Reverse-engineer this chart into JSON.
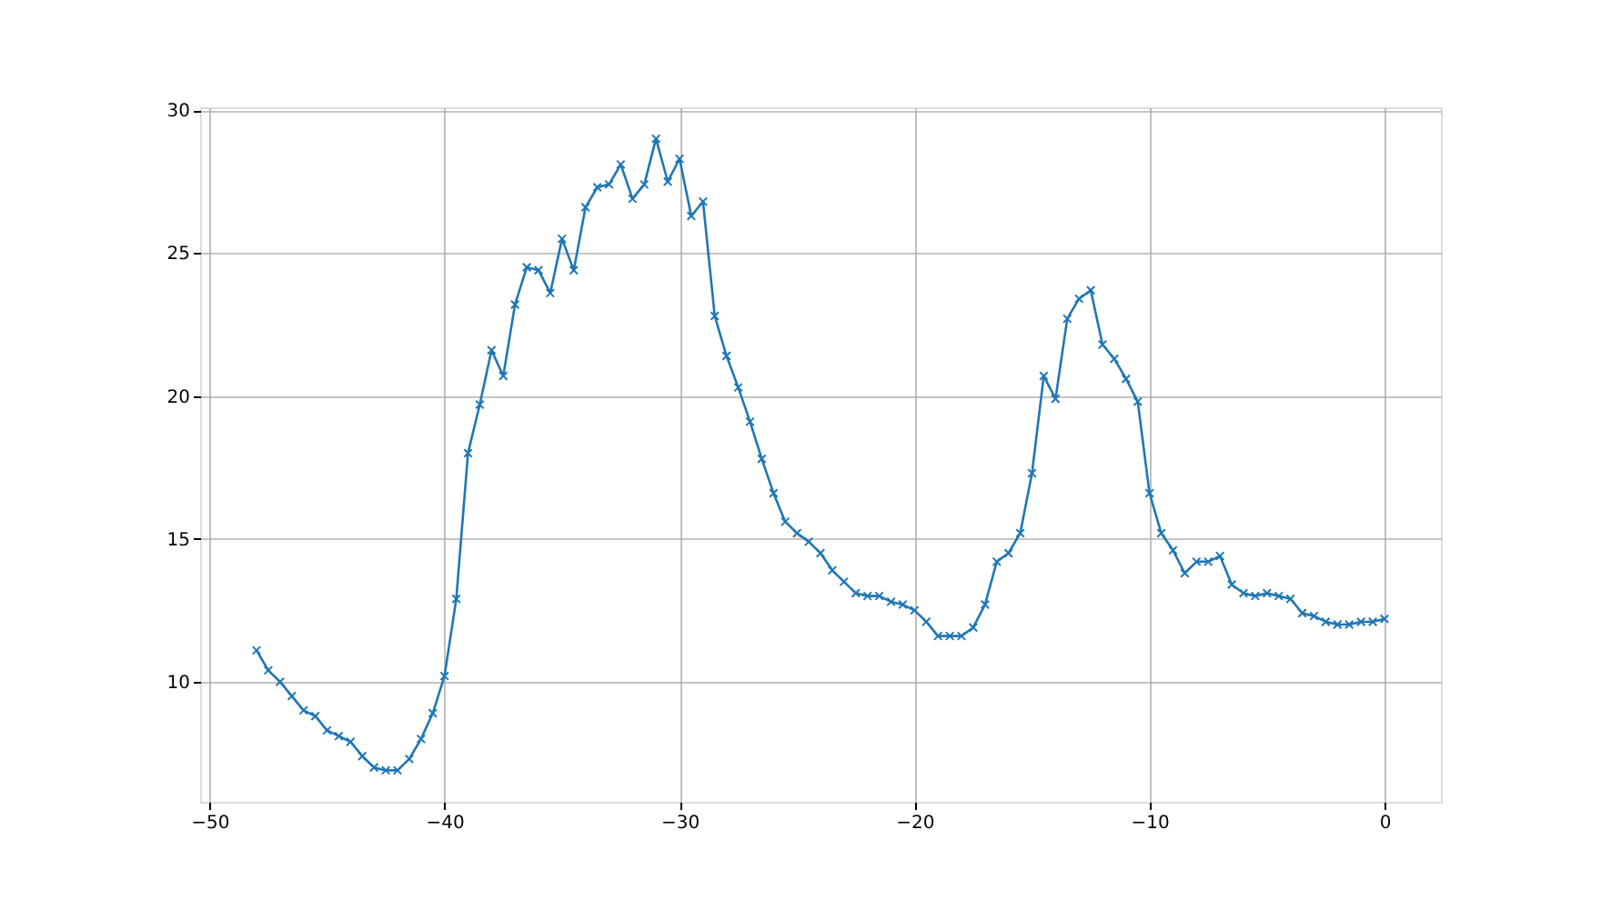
{
  "chart_data": {
    "type": "line",
    "x": [
      -48,
      -47.5,
      -47,
      -46.5,
      -46,
      -45.5,
      -45,
      -44.5,
      -44,
      -43.5,
      -43,
      -42.5,
      -42,
      -41.5,
      -41,
      -40.5,
      -40,
      -39.5,
      -39,
      -38.5,
      -38,
      -37.5,
      -37,
      -36.5,
      -36,
      -35.5,
      -35,
      -34.5,
      -34,
      -33.5,
      -33,
      -32.5,
      -32,
      -31.5,
      -31,
      -30.5,
      -30,
      -29.5,
      -29,
      -28.5,
      -28,
      -27.5,
      -27,
      -26.5,
      -26,
      -25.5,
      -25,
      -24.5,
      -24,
      -23.5,
      -23,
      -22.5,
      -22,
      -21.5,
      -21,
      -20.5,
      -20,
      -19.5,
      -19,
      -18.5,
      -18,
      -17.5,
      -17,
      -16.5,
      -16,
      -15.5,
      -15,
      -14.5,
      -14,
      -13.5,
      -13,
      -12.5,
      -12,
      -11.5,
      -11,
      -10.5,
      -10,
      -9.5,
      -9,
      -8.5,
      -8,
      -7.5,
      -7,
      -6.5,
      -6,
      -5.5,
      -5,
      -4.5,
      -4,
      -3.5,
      -3,
      -2.5,
      -2,
      -1.5,
      -1,
      -0.5,
      0
    ],
    "series": [
      {
        "color": "#1f77b4",
        "values": [
          11.1,
          10.4,
          10.0,
          9.5,
          9.0,
          8.8,
          8.3,
          8.1,
          7.9,
          7.4,
          7.0,
          6.9,
          6.9,
          7.3,
          8.0,
          8.9,
          10.2,
          12.9,
          18.0,
          19.7,
          21.6,
          20.7,
          23.2,
          24.5,
          24.4,
          23.6,
          25.5,
          24.4,
          26.6,
          27.3,
          27.4,
          28.1,
          26.9,
          27.4,
          29.0,
          27.5,
          28.3,
          26.3,
          26.8,
          22.8,
          21.4,
          20.3,
          19.1,
          17.8,
          16.6,
          15.6,
          15.2,
          14.9,
          14.5,
          13.9,
          13.5,
          13.1,
          13.0,
          13.0,
          12.8,
          12.7,
          12.5,
          12.1,
          11.6,
          11.6,
          11.6,
          11.9,
          12.7,
          14.2,
          14.5,
          15.2,
          17.3,
          20.7,
          19.9,
          22.7,
          23.4,
          23.7,
          21.8,
          21.3,
          20.6,
          19.8,
          16.6,
          15.2,
          14.6,
          13.8,
          14.2,
          14.2,
          14.4,
          13.4,
          13.1,
          13.0,
          13.1,
          13.0,
          12.9,
          12.4,
          12.3,
          12.1,
          12.0,
          12.0,
          12.1,
          12.1,
          12.2
        ]
      }
    ],
    "xlim": [
      -50.4,
      2.4
    ],
    "xticks": [
      -50,
      -40,
      -30,
      -20,
      -10,
      0
    ],
    "ylim": [
      5.8,
      30.1
    ],
    "yticks": [
      10,
      15,
      20,
      25,
      30
    ],
    "grid": true,
    "marker": "cross",
    "line_style": "solid"
  }
}
